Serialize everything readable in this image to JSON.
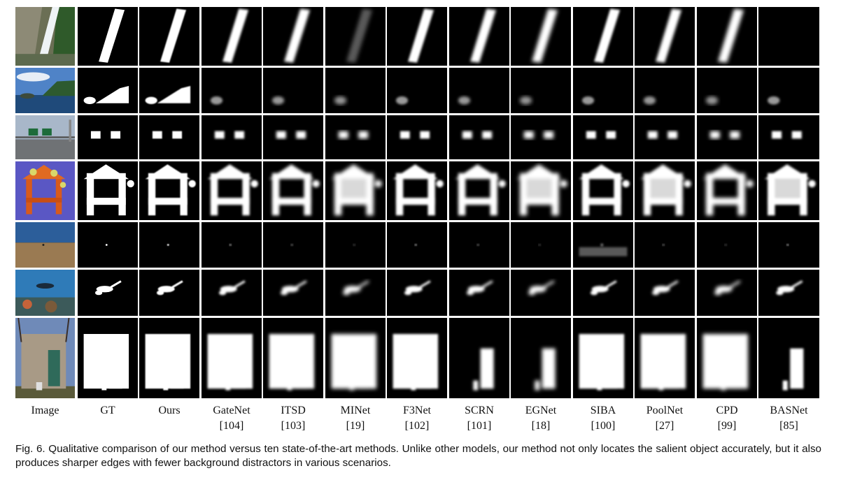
{
  "columns": [
    {
      "name": "Image",
      "ref": ""
    },
    {
      "name": "GT",
      "ref": ""
    },
    {
      "name": "Ours",
      "ref": ""
    },
    {
      "name": "GateNet",
      "ref": "[104]"
    },
    {
      "name": "ITSD",
      "ref": "[103]"
    },
    {
      "name": "MINet",
      "ref": "[19]"
    },
    {
      "name": "F3Net",
      "ref": "[102]"
    },
    {
      "name": "SCRN",
      "ref": "[101]"
    },
    {
      "name": "EGNet",
      "ref": "[18]"
    },
    {
      "name": "SIBA",
      "ref": "[100]"
    },
    {
      "name": "PoolNet",
      "ref": "[27]"
    },
    {
      "name": "CPD",
      "ref": "[99]"
    },
    {
      "name": "BASNet",
      "ref": "[85]"
    }
  ],
  "rows": [
    "waterfall",
    "coast",
    "highway-signs",
    "flower-arch",
    "beach-dot",
    "diver",
    "mausoleum"
  ],
  "caption": "Fig. 6. Qualitative comparison of our method versus ten state-of-the-art methods. Unlike other models, our method not only locates the salient object accurately, but it also produces sharper edges with fewer background distractors in various scenarios."
}
